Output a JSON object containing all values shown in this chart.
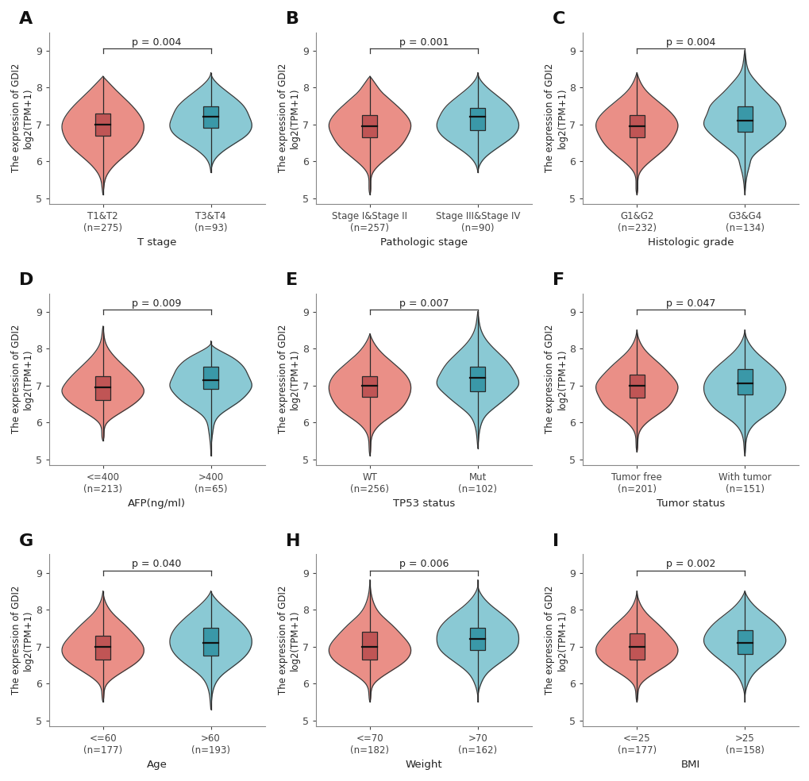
{
  "panels": [
    {
      "label": "A",
      "title": "T stage",
      "p_value": "p = 0.004",
      "groups": [
        {
          "name": "T1&T2\n(n=275)",
          "color": "#E8837A",
          "box_color": "#C05555",
          "median": 7.0,
          "q1": 6.7,
          "q3": 7.3,
          "whisker_low": 5.1,
          "whisker_high": 8.3,
          "kde_y": [
            5.1,
            5.3,
            5.6,
            6.0,
            6.4,
            6.7,
            7.0,
            7.3,
            7.6,
            7.9,
            8.2,
            8.3
          ],
          "kde_w": [
            0.0,
            0.02,
            0.08,
            0.35,
            0.72,
            0.88,
            0.92,
            0.8,
            0.58,
            0.32,
            0.08,
            0.0
          ]
        },
        {
          "name": "T3&T4\n(n=93)",
          "color": "#7DC4D0",
          "box_color": "#3A98A8",
          "median": 7.2,
          "q1": 6.9,
          "q3": 7.5,
          "whisker_low": 5.7,
          "whisker_high": 8.4,
          "kde_y": [
            5.7,
            5.9,
            6.1,
            6.4,
            6.7,
            7.0,
            7.2,
            7.5,
            7.8,
            8.1,
            8.4
          ],
          "kde_w": [
            0.0,
            0.03,
            0.12,
            0.42,
            0.78,
            0.9,
            0.85,
            0.72,
            0.45,
            0.15,
            0.0
          ]
        }
      ]
    },
    {
      "label": "B",
      "title": "Pathologic stage",
      "p_value": "p = 0.001",
      "groups": [
        {
          "name": "Stage I&Stage II\n(n=257)",
          "color": "#E8837A",
          "box_color": "#C05555",
          "median": 6.95,
          "q1": 6.65,
          "q3": 7.25,
          "whisker_low": 5.1,
          "whisker_high": 8.3,
          "kde_y": [
            5.1,
            5.4,
            5.7,
            6.0,
            6.4,
            6.7,
            7.0,
            7.3,
            7.6,
            7.9,
            8.2,
            8.3
          ],
          "kde_w": [
            0.0,
            0.02,
            0.07,
            0.3,
            0.68,
            0.85,
            0.92,
            0.78,
            0.52,
            0.25,
            0.07,
            0.0
          ]
        },
        {
          "name": "Stage III&Stage IV\n(n=90)",
          "color": "#7DC4D0",
          "box_color": "#3A98A8",
          "median": 7.2,
          "q1": 6.85,
          "q3": 7.45,
          "whisker_low": 5.7,
          "whisker_high": 8.4,
          "kde_y": [
            5.7,
            5.9,
            6.1,
            6.4,
            6.7,
            7.0,
            7.2,
            7.5,
            7.8,
            8.1,
            8.4
          ],
          "kde_w": [
            0.0,
            0.04,
            0.15,
            0.45,
            0.75,
            0.85,
            0.8,
            0.65,
            0.38,
            0.12,
            0.0
          ]
        }
      ]
    },
    {
      "label": "C",
      "title": "Histologic grade",
      "p_value": "p = 0.004",
      "groups": [
        {
          "name": "G1&G2\n(n=232)",
          "color": "#E8837A",
          "box_color": "#C05555",
          "median": 6.95,
          "q1": 6.65,
          "q3": 7.25,
          "whisker_low": 5.1,
          "whisker_high": 8.4,
          "kde_y": [
            5.1,
            5.4,
            5.7,
            6.0,
            6.4,
            6.7,
            7.0,
            7.3,
            7.6,
            7.9,
            8.2,
            8.4
          ],
          "kde_w": [
            0.0,
            0.02,
            0.07,
            0.3,
            0.68,
            0.85,
            0.92,
            0.78,
            0.5,
            0.22,
            0.06,
            0.0
          ]
        },
        {
          "name": "G3&G4\n(n=134)",
          "color": "#7DC4D0",
          "box_color": "#3A98A8",
          "median": 7.1,
          "q1": 6.8,
          "q3": 7.5,
          "whisker_low": 5.1,
          "whisker_high": 9.0,
          "kde_y": [
            5.1,
            5.4,
            5.7,
            5.9,
            6.1,
            6.4,
            6.7,
            7.0,
            7.3,
            7.5,
            7.8,
            8.1,
            8.4,
            8.7,
            9.0
          ],
          "kde_w": [
            0.0,
            0.02,
            0.06,
            0.1,
            0.15,
            0.4,
            0.68,
            0.85,
            0.78,
            0.72,
            0.5,
            0.28,
            0.1,
            0.03,
            0.0
          ]
        }
      ]
    },
    {
      "label": "D",
      "title": "AFP(ng/ml)",
      "p_value": "p = 0.009",
      "groups": [
        {
          "name": "<=400\n(n=213)",
          "color": "#E8837A",
          "box_color": "#C05555",
          "median": 6.95,
          "q1": 6.6,
          "q3": 7.25,
          "whisker_low": 5.5,
          "whisker_high": 8.6,
          "kde_y": [
            5.5,
            5.8,
            6.0,
            6.3,
            6.6,
            6.9,
            7.0,
            7.2,
            7.5,
            7.8,
            8.1,
            8.4,
            8.6
          ],
          "kde_w": [
            0.0,
            0.03,
            0.1,
            0.45,
            0.8,
            0.92,
            0.88,
            0.75,
            0.5,
            0.25,
            0.08,
            0.02,
            0.0
          ]
        },
        {
          "name": ">400\n(n=65)",
          "color": "#7DC4D0",
          "box_color": "#3A98A8",
          "median": 7.15,
          "q1": 6.9,
          "q3": 7.5,
          "whisker_low": 5.1,
          "whisker_high": 8.2,
          "kde_y": [
            5.1,
            5.4,
            5.8,
            6.2,
            6.5,
            6.8,
            7.0,
            7.2,
            7.5,
            7.8,
            8.0,
            8.2
          ],
          "kde_w": [
            0.0,
            0.01,
            0.05,
            0.2,
            0.55,
            0.82,
            0.9,
            0.85,
            0.72,
            0.42,
            0.12,
            0.0
          ]
        }
      ]
    },
    {
      "label": "E",
      "title": "TP53 status",
      "p_value": "p = 0.007",
      "groups": [
        {
          "name": "WT\n(n=256)",
          "color": "#E8837A",
          "box_color": "#C05555",
          "median": 7.0,
          "q1": 6.7,
          "q3": 7.25,
          "whisker_low": 5.1,
          "whisker_high": 8.4,
          "kde_y": [
            5.1,
            5.4,
            5.7,
            6.0,
            6.3,
            6.6,
            7.0,
            7.3,
            7.6,
            7.9,
            8.2,
            8.4
          ],
          "kde_w": [
            0.0,
            0.02,
            0.07,
            0.28,
            0.62,
            0.82,
            0.9,
            0.78,
            0.52,
            0.25,
            0.07,
            0.0
          ]
        },
        {
          "name": "Mut\n(n=102)",
          "color": "#7DC4D0",
          "box_color": "#3A98A8",
          "median": 7.2,
          "q1": 6.85,
          "q3": 7.5,
          "whisker_low": 5.3,
          "whisker_high": 9.0,
          "kde_y": [
            5.3,
            5.6,
            5.9,
            6.2,
            6.5,
            6.8,
            7.0,
            7.3,
            7.6,
            7.9,
            8.2,
            8.5,
            8.8,
            9.0
          ],
          "kde_w": [
            0.0,
            0.02,
            0.06,
            0.18,
            0.45,
            0.72,
            0.85,
            0.8,
            0.65,
            0.42,
            0.2,
            0.07,
            0.02,
            0.0
          ]
        }
      ]
    },
    {
      "label": "F",
      "title": "Tumor status",
      "p_value": "p = 0.047",
      "groups": [
        {
          "name": "Tumor free\n(n=201)",
          "color": "#E8837A",
          "box_color": "#C05555",
          "median": 7.0,
          "q1": 6.68,
          "q3": 7.3,
          "whisker_low": 5.2,
          "whisker_high": 8.5,
          "kde_y": [
            5.2,
            5.5,
            5.8,
            6.1,
            6.4,
            6.7,
            7.0,
            7.3,
            7.6,
            7.9,
            8.2,
            8.5
          ],
          "kde_w": [
            0.0,
            0.02,
            0.08,
            0.32,
            0.65,
            0.82,
            0.88,
            0.72,
            0.48,
            0.22,
            0.06,
            0.0
          ]
        },
        {
          "name": "With tumor\n(n=151)",
          "color": "#7DC4D0",
          "box_color": "#3A98A8",
          "median": 7.05,
          "q1": 6.75,
          "q3": 7.45,
          "whisker_low": 5.1,
          "whisker_high": 8.5,
          "kde_y": [
            5.1,
            5.4,
            5.7,
            6.0,
            6.3,
            6.6,
            7.0,
            7.3,
            7.6,
            7.9,
            8.2,
            8.5
          ],
          "kde_w": [
            0.0,
            0.02,
            0.07,
            0.25,
            0.58,
            0.8,
            0.88,
            0.76,
            0.52,
            0.25,
            0.07,
            0.0
          ]
        }
      ]
    },
    {
      "label": "G",
      "title": "Age",
      "p_value": "p = 0.040",
      "groups": [
        {
          "name": "<=60\n(n=177)",
          "color": "#E8837A",
          "box_color": "#C05555",
          "median": 7.0,
          "q1": 6.65,
          "q3": 7.3,
          "whisker_low": 5.5,
          "whisker_high": 8.5,
          "kde_y": [
            5.5,
            5.8,
            6.0,
            6.3,
            6.6,
            7.0,
            7.3,
            7.6,
            7.9,
            8.2,
            8.5
          ],
          "kde_w": [
            0.0,
            0.03,
            0.1,
            0.42,
            0.78,
            0.9,
            0.72,
            0.48,
            0.22,
            0.06,
            0.0
          ]
        },
        {
          "name": ">60\n(n=193)",
          "color": "#7DC4D0",
          "box_color": "#3A98A8",
          "median": 7.1,
          "q1": 6.75,
          "q3": 7.5,
          "whisker_low": 5.3,
          "whisker_high": 8.5,
          "kde_y": [
            5.3,
            5.6,
            5.9,
            6.2,
            6.5,
            6.8,
            7.1,
            7.4,
            7.7,
            8.0,
            8.3,
            8.5
          ],
          "kde_w": [
            0.0,
            0.02,
            0.07,
            0.22,
            0.52,
            0.78,
            0.88,
            0.82,
            0.62,
            0.35,
            0.1,
            0.0
          ]
        }
      ]
    },
    {
      "label": "H",
      "title": "Weight",
      "p_value": "p = 0.006",
      "groups": [
        {
          "name": "<=70\n(n=182)",
          "color": "#E8837A",
          "box_color": "#C05555",
          "median": 7.0,
          "q1": 6.65,
          "q3": 7.4,
          "whisker_low": 5.5,
          "whisker_high": 8.8,
          "kde_y": [
            5.5,
            5.8,
            6.0,
            6.3,
            6.6,
            7.0,
            7.3,
            7.6,
            7.9,
            8.2,
            8.5,
            8.8
          ],
          "kde_w": [
            0.0,
            0.03,
            0.1,
            0.42,
            0.78,
            0.9,
            0.72,
            0.48,
            0.22,
            0.08,
            0.02,
            0.0
          ]
        },
        {
          "name": ">70\n(n=162)",
          "color": "#7DC4D0",
          "box_color": "#3A98A8",
          "median": 7.2,
          "q1": 6.9,
          "q3": 7.5,
          "whisker_low": 5.5,
          "whisker_high": 8.8,
          "kde_y": [
            5.5,
            5.8,
            6.0,
            6.3,
            6.6,
            6.9,
            7.2,
            7.5,
            7.8,
            8.1,
            8.4,
            8.8
          ],
          "kde_w": [
            0.0,
            0.02,
            0.07,
            0.22,
            0.52,
            0.8,
            0.88,
            0.82,
            0.6,
            0.3,
            0.08,
            0.0
          ]
        }
      ]
    },
    {
      "label": "I",
      "title": "BMI",
      "p_value": "p = 0.002",
      "groups": [
        {
          "name": "<=25\n(n=177)",
          "color": "#E8837A",
          "box_color": "#C05555",
          "median": 7.0,
          "q1": 6.65,
          "q3": 7.35,
          "whisker_low": 5.5,
          "whisker_high": 8.5,
          "kde_y": [
            5.5,
            5.8,
            6.0,
            6.3,
            6.6,
            7.0,
            7.3,
            7.6,
            7.9,
            8.2,
            8.5
          ],
          "kde_w": [
            0.0,
            0.03,
            0.1,
            0.42,
            0.78,
            0.9,
            0.72,
            0.48,
            0.22,
            0.06,
            0.0
          ]
        },
        {
          "name": ">25\n(n=158)",
          "color": "#7DC4D0",
          "box_color": "#3A98A8",
          "median": 7.1,
          "q1": 6.8,
          "q3": 7.45,
          "whisker_low": 5.5,
          "whisker_high": 8.5,
          "kde_y": [
            5.5,
            5.8,
            6.0,
            6.3,
            6.6,
            6.9,
            7.1,
            7.4,
            7.7,
            8.0,
            8.3,
            8.5
          ],
          "kde_w": [
            0.0,
            0.02,
            0.07,
            0.22,
            0.5,
            0.78,
            0.88,
            0.82,
            0.6,
            0.3,
            0.08,
            0.0
          ]
        }
      ]
    }
  ],
  "ylabel": "The expression of GDI2\nlog2(TPM+1)",
  "ylim": [
    4.85,
    9.5
  ],
  "yticks": [
    5,
    6,
    7,
    8,
    9
  ],
  "background_color": "#ffffff",
  "violin_width": 0.38,
  "box_width": 0.14
}
